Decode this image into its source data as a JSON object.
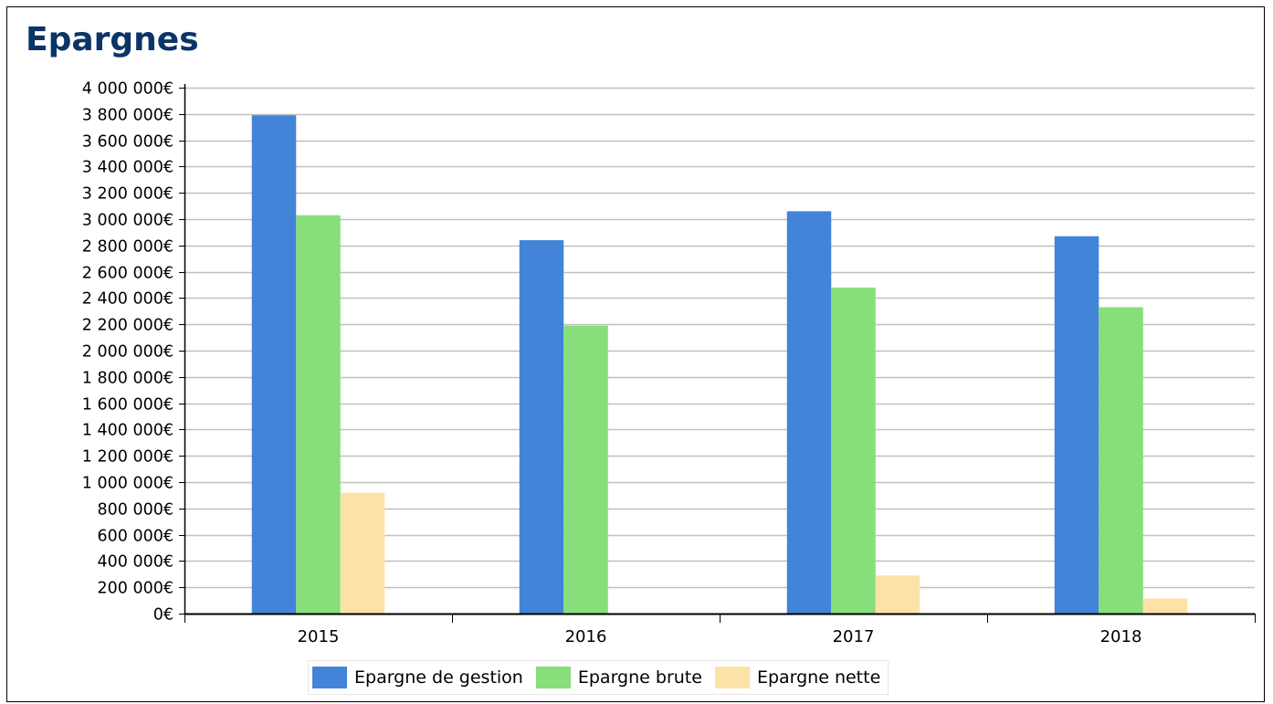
{
  "chart_data": {
    "type": "bar",
    "title": "Epargnes",
    "xlabel": "",
    "ylabel": "",
    "categories": [
      "2015",
      "2016",
      "2017",
      "2018"
    ],
    "series": [
      {
        "name": "Epargne de gestion",
        "color": "#4284d8",
        "values": [
          3790000,
          2840000,
          3060000,
          2870000
        ]
      },
      {
        "name": "Epargne brute",
        "color": "#87de7b",
        "values": [
          3030000,
          2190000,
          2480000,
          2330000
        ]
      },
      {
        "name": "Epargne nette",
        "color": "#fde2a8",
        "values": [
          920000,
          0,
          290000,
          115000
        ]
      }
    ],
    "ylim": [
      0,
      4000000
    ],
    "y_ticks": [
      {
        "value": 0,
        "label": "0€"
      },
      {
        "value": 200000,
        "label": "200 000€"
      },
      {
        "value": 400000,
        "label": "400 000€"
      },
      {
        "value": 600000,
        "label": "600 000€"
      },
      {
        "value": 800000,
        "label": "800 000€"
      },
      {
        "value": 1000000,
        "label": "1 000 000€"
      },
      {
        "value": 1200000,
        "label": "1 200 000€"
      },
      {
        "value": 1400000,
        "label": "1 400 000€"
      },
      {
        "value": 1600000,
        "label": "1 600 000€"
      },
      {
        "value": 1800000,
        "label": "1 800 000€"
      },
      {
        "value": 2000000,
        "label": "2 000 000€"
      },
      {
        "value": 2200000,
        "label": "2 200 000€"
      },
      {
        "value": 2400000,
        "label": "2 400 000€"
      },
      {
        "value": 2600000,
        "label": "2 600 000€"
      },
      {
        "value": 2800000,
        "label": "2 800 000€"
      },
      {
        "value": 3000000,
        "label": "3 000 000€"
      },
      {
        "value": 3200000,
        "label": "3 200 000€"
      },
      {
        "value": 3400000,
        "label": "3 400 000€"
      },
      {
        "value": 3600000,
        "label": "3 600 000€"
      },
      {
        "value": 3800000,
        "label": "3 800 000€"
      },
      {
        "value": 4000000,
        "label": "4 000 000€"
      }
    ],
    "grid": true,
    "legend_position": "bottom"
  }
}
